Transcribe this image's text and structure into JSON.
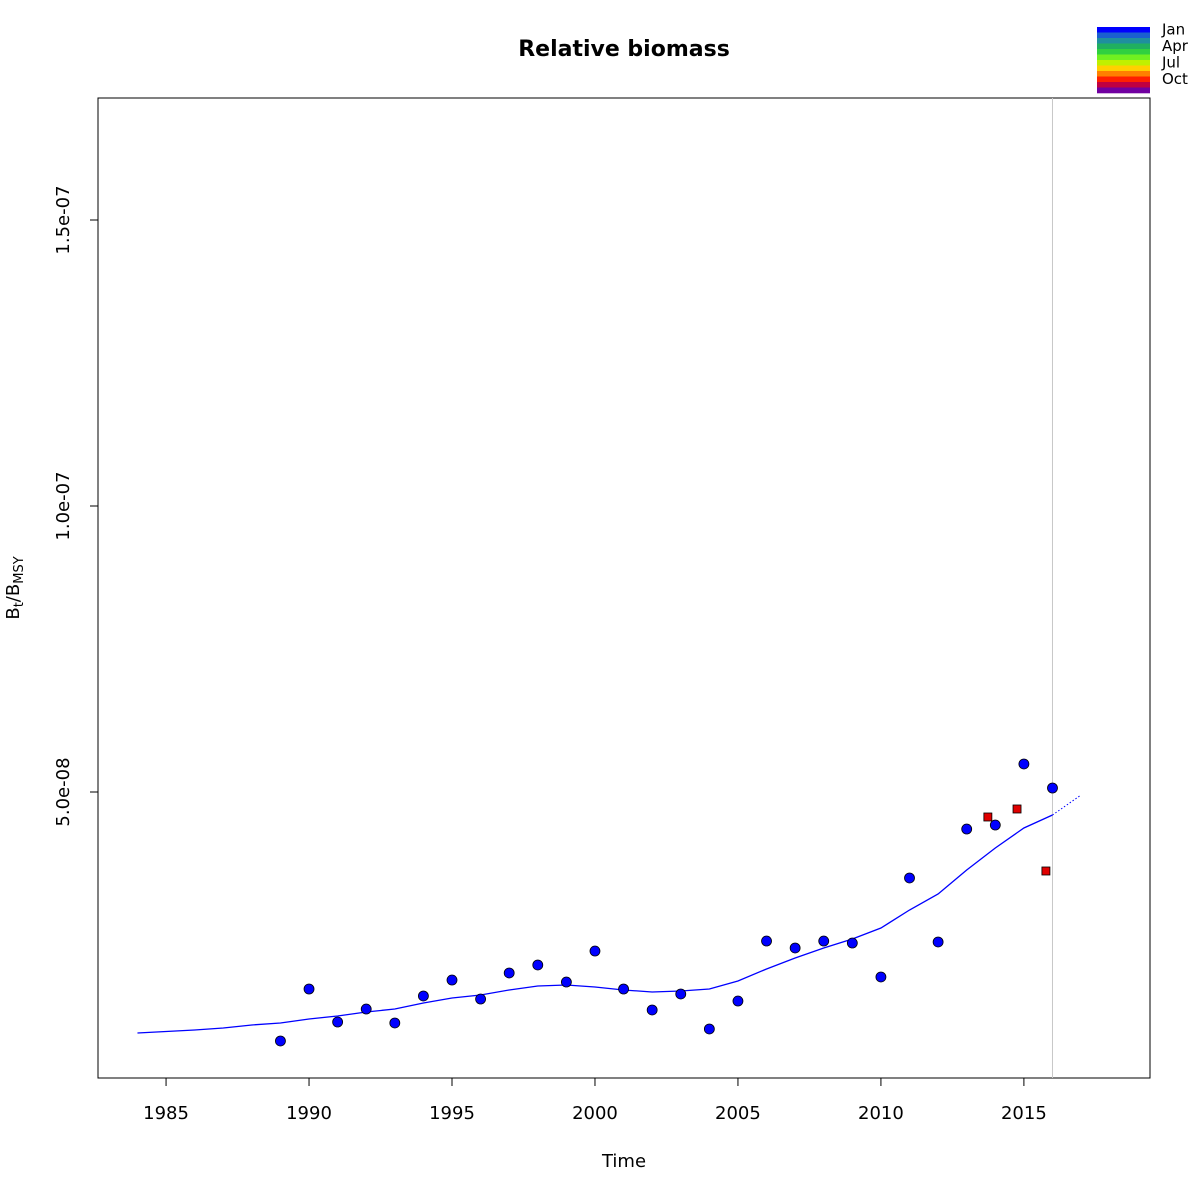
{
  "chart_data": {
    "type": "scatter",
    "title": "Relative biomass",
    "xlabel": "Time",
    "ylabel_parts": [
      "B",
      "t",
      "/B",
      "MSY"
    ],
    "xlim": [
      1982.62,
      2019.41
    ],
    "ylim": [
      0,
      1.7133e-07
    ],
    "xticks": [
      1985,
      1990,
      1995,
      2000,
      2005,
      2010,
      2015
    ],
    "yticks": [
      {
        "value": 5e-08,
        "label": "5.0e-08"
      },
      {
        "value": 1e-07,
        "label": "1.0e-07"
      },
      {
        "value": 1.5e-07,
        "label": "1.5e-07"
      }
    ],
    "vline_x": 2016,
    "series": [
      {
        "type": "line",
        "color": "#0000ff",
        "dash": false,
        "x": [
          1984,
          1985,
          1986,
          1987,
          1988,
          1989,
          1990,
          1991,
          1992,
          1993,
          1994,
          1995,
          1996,
          1997,
          1998,
          1999,
          2000,
          2001,
          2002,
          2003,
          2004,
          2005,
          2006,
          2007,
          2008,
          2009,
          2010,
          2011,
          2012,
          2013,
          2014,
          2015,
          2016
        ],
        "values": [
          7.87e-09,
          8.13e-09,
          8.39e-09,
          8.74e-09,
          9.27e-09,
          9.62e-09,
          1.032e-08,
          1.084e-08,
          1.154e-08,
          1.206e-08,
          1.311e-08,
          1.399e-08,
          1.451e-08,
          1.539e-08,
          1.608e-08,
          1.626e-08,
          1.591e-08,
          1.539e-08,
          1.504e-08,
          1.521e-08,
          1.556e-08,
          1.696e-08,
          1.906e-08,
          2.098e-08,
          2.273e-08,
          2.43e-08,
          2.622e-08,
          2.937e-08,
          3.217e-08,
          3.636e-08,
          4.021e-08,
          4.371e-08,
          4.598e-08
        ]
      },
      {
        "type": "line",
        "color": "#0000ff",
        "dash": true,
        "x": [
          2016,
          2017
        ],
        "values": [
          4.598e-08,
          4.948e-08
        ]
      },
      {
        "type": "scatter",
        "color": "#0000ff",
        "marker": "circle",
        "x": [
          1989,
          1990,
          1991,
          1992,
          1993,
          1994,
          1995,
          1996,
          1997,
          1998,
          1999,
          2000,
          2001,
          2002,
          2003,
          2004,
          2005,
          2006,
          2007,
          2008,
          2009,
          2010,
          2011,
          2012,
          2013,
          2014,
          2015,
          2016
        ],
        "values": [
          6.47e-09,
          1.556e-08,
          9.79e-09,
          1.206e-08,
          9.62e-09,
          1.434e-08,
          1.713e-08,
          1.381e-08,
          1.836e-08,
          1.976e-08,
          1.678e-08,
          2.22e-08,
          1.556e-08,
          1.189e-08,
          1.469e-08,
          8.57e-09,
          1.346e-08,
          2.395e-08,
          2.273e-08,
          2.395e-08,
          2.36e-08,
          1.766e-08,
          3.497e-08,
          2.378e-08,
          4.353e-08,
          4.423e-08,
          5.49e-08,
          5.07e-08
        ]
      },
      {
        "type": "scatter",
        "color": "#e00000",
        "marker": "square",
        "x": [
          2013.74,
          2014.76,
          2015.77
        ],
        "values": [
          4.563e-08,
          4.703e-08,
          3.619e-08
        ]
      }
    ],
    "season_legend": {
      "labels": [
        "Jan",
        "Apr",
        "Jul",
        "Oct"
      ],
      "colors": [
        "#0000ff",
        "#1a5fd0",
        "#1f8f9f",
        "#20b060",
        "#30d040",
        "#70f020",
        "#c0f000",
        "#ffd000",
        "#ff8000",
        "#ff2000",
        "#c00040",
        "#7000a0"
      ]
    }
  }
}
